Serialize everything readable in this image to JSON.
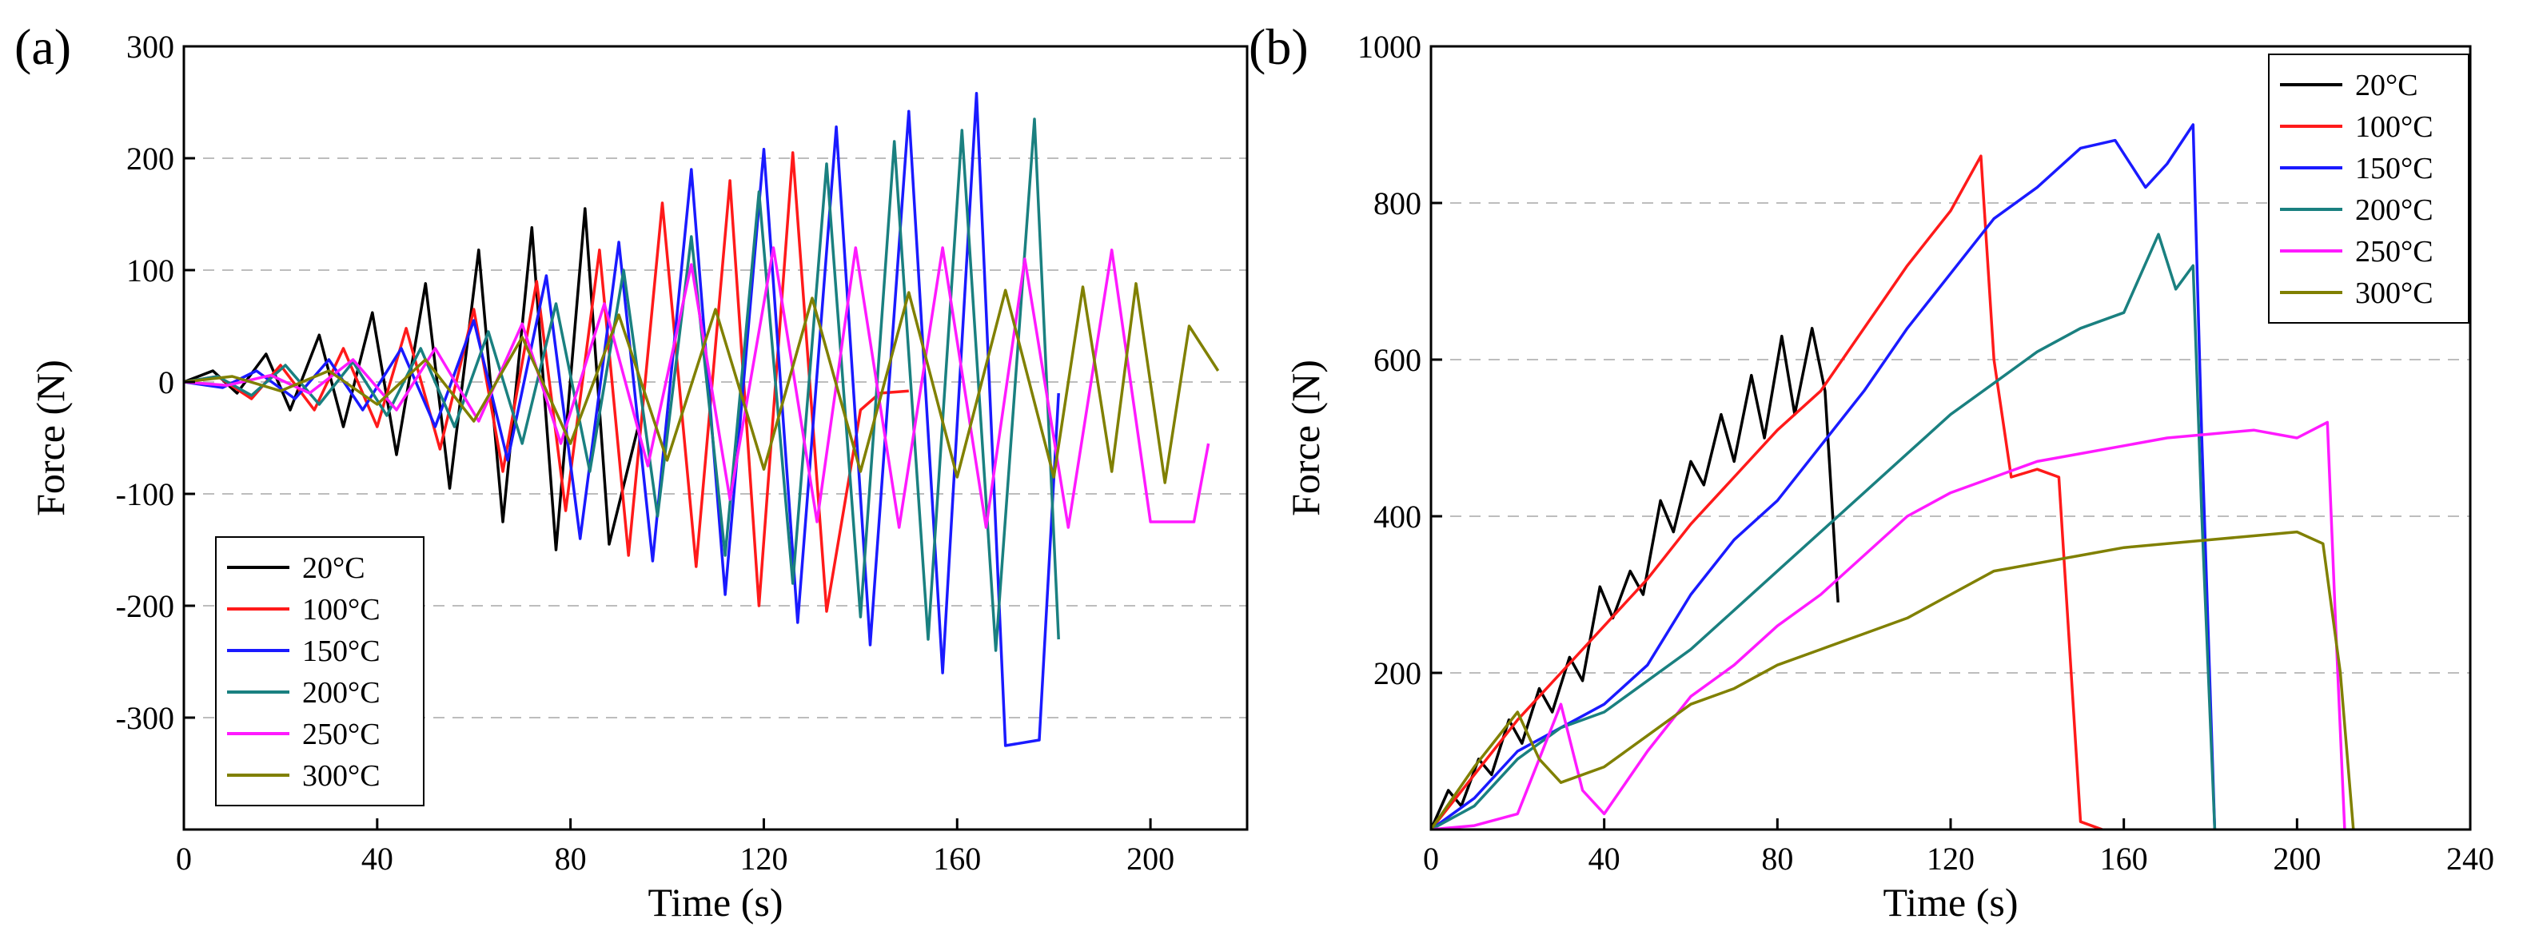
{
  "panels": [
    {
      "panel_label": "(a)",
      "chart_data": {
        "type": "line",
        "title": "",
        "xlabel": "Time (s)",
        "ylabel": "Force (N)",
        "xlim": [
          0,
          220
        ],
        "ylim": [
          -400,
          300
        ],
        "xticks": [
          0,
          40,
          80,
          120,
          160,
          200
        ],
        "yticks": [
          -300,
          -200,
          -100,
          0,
          100,
          200,
          300
        ],
        "grid": "dashed-horizontal",
        "legend_position": "bottom-left",
        "series": [
          {
            "name": "20°C",
            "color": "#000000",
            "x": [
              0,
              6,
              11,
              17,
              22,
              28,
              33,
              39,
              44,
              50,
              55,
              61,
              66,
              72,
              77,
              83,
              88,
              94
            ],
            "y": [
              0,
              10,
              -10,
              25,
              -25,
              42,
              -40,
              62,
              -65,
              88,
              -95,
              118,
              -125,
              138,
              -150,
              155,
              -145,
              -40
            ]
          },
          {
            "name": "100°C",
            "color": "#ff1a1a",
            "x": [
              0,
              7,
              14,
              20,
              27,
              33,
              40,
              46,
              53,
              60,
              66,
              73,
              79,
              86,
              92,
              99,
              106,
              113,
              119,
              126,
              133,
              140,
              144,
              150
            ],
            "y": [
              0,
              5,
              -15,
              15,
              -25,
              30,
              -40,
              48,
              -60,
              65,
              -80,
              90,
              -115,
              118,
              -155,
              160,
              -165,
              180,
              -200,
              205,
              -205,
              -25,
              -10,
              -8
            ]
          },
          {
            "name": "150°C",
            "color": "#1a1aff",
            "x": [
              0,
              8,
              15,
              23,
              30,
              37,
              45,
              52,
              60,
              67,
              75,
              82,
              90,
              97,
              105,
              112,
              120,
              127,
              135,
              142,
              150,
              157,
              164,
              170,
              177,
              181
            ],
            "y": [
              0,
              -5,
              10,
              -15,
              20,
              -25,
              30,
              -40,
              55,
              -70,
              95,
              -140,
              125,
              -160,
              190,
              -190,
              208,
              -215,
              228,
              -235,
              242,
              -260,
              258,
              -325,
              -320,
              -10
            ]
          },
          {
            "name": "200°C",
            "color": "#1a8080",
            "x": [
              0,
              7,
              14,
              21,
              28,
              35,
              42,
              49,
              56,
              63,
              70,
              77,
              84,
              91,
              98,
              105,
              112,
              119,
              126,
              133,
              140,
              147,
              154,
              161,
              168,
              176,
              181
            ],
            "y": [
              0,
              5,
              -12,
              15,
              -20,
              18,
              -30,
              30,
              -40,
              45,
              -55,
              70,
              -80,
              100,
              -120,
              130,
              -155,
              170,
              -180,
              195,
              -210,
              215,
              -230,
              225,
              -240,
              235,
              -230
            ]
          },
          {
            "name": "250°C",
            "color": "#ff1aff",
            "x": [
              0,
              9,
              18,
              26,
              35,
              44,
              52,
              61,
              70,
              78,
              87,
              96,
              105,
              113,
              122,
              131,
              139,
              148,
              157,
              166,
              174,
              183,
              192,
              200,
              209,
              212
            ],
            "y": [
              0,
              -3,
              6,
              -10,
              20,
              -25,
              30,
              -35,
              52,
              -55,
              70,
              -75,
              105,
              -105,
              120,
              -125,
              120,
              -130,
              120,
              -130,
              110,
              -130,
              118,
              -125,
              -125,
              -55
            ]
          },
          {
            "name": "300°C",
            "color": "#808000",
            "x": [
              0,
              10,
              20,
              30,
              40,
              50,
              60,
              70,
              80,
              90,
              100,
              110,
              120,
              130,
              140,
              150,
              160,
              170,
              180,
              186,
              192,
              197,
              203,
              208,
              214
            ],
            "y": [
              0,
              5,
              -8,
              10,
              -20,
              20,
              -35,
              40,
              -55,
              60,
              -70,
              65,
              -78,
              75,
              -80,
              80,
              -85,
              82,
              -85,
              85,
              -80,
              88,
              -90,
              50,
              10
            ]
          }
        ]
      }
    },
    {
      "panel_label": "(b)",
      "chart_data": {
        "type": "line",
        "title": "",
        "xlabel": "Time (s)",
        "ylabel": "Force (N)",
        "xlim": [
          0,
          240
        ],
        "ylim": [
          0,
          1000
        ],
        "xticks": [
          0,
          40,
          80,
          120,
          160,
          200,
          240
        ],
        "yticks": [
          200,
          400,
          600,
          800,
          1000
        ],
        "grid": "dashed-horizontal",
        "legend_position": "top-right",
        "series": [
          {
            "name": "20°C",
            "color": "#000000",
            "x": [
              0,
              4,
              7,
              11,
              14,
              18,
              21,
              25,
              28,
              32,
              35,
              39,
              42,
              46,
              49,
              53,
              56,
              60,
              63,
              67,
              70,
              74,
              77,
              81,
              84,
              88,
              91,
              94
            ],
            "y": [
              0,
              50,
              30,
              90,
              70,
              140,
              110,
              180,
              150,
              220,
              190,
              310,
              270,
              330,
              300,
              420,
              380,
              470,
              440,
              530,
              470,
              580,
              500,
              630,
              530,
              640,
              560,
              290
            ]
          },
          {
            "name": "100°C",
            "color": "#ff1a1a",
            "x": [
              0,
              10,
              20,
              30,
              40,
              50,
              60,
              70,
              80,
              90,
              100,
              110,
              120,
              127,
              130,
              134,
              140,
              145,
              150,
              155
            ],
            "y": [
              0,
              70,
              140,
              200,
              260,
              320,
              390,
              450,
              510,
              560,
              640,
              720,
              790,
              860,
              600,
              450,
              460,
              450,
              10,
              0
            ]
          },
          {
            "name": "150°C",
            "color": "#1a1aff",
            "x": [
              0,
              10,
              20,
              30,
              40,
              50,
              60,
              70,
              80,
              90,
              100,
              110,
              120,
              130,
              140,
              150,
              158,
              165,
              170,
              176,
              178,
              181
            ],
            "y": [
              0,
              40,
              100,
              130,
              160,
              210,
              300,
              370,
              420,
              490,
              560,
              640,
              710,
              780,
              820,
              870,
              880,
              820,
              850,
              900,
              500,
              0
            ]
          },
          {
            "name": "200°C",
            "color": "#1a8080",
            "x": [
              0,
              10,
              20,
              30,
              40,
              50,
              60,
              70,
              80,
              90,
              100,
              110,
              120,
              130,
              140,
              150,
              160,
              168,
              172,
              176,
              178,
              181
            ],
            "y": [
              0,
              30,
              90,
              130,
              150,
              190,
              230,
              280,
              330,
              380,
              430,
              480,
              530,
              570,
              610,
              640,
              660,
              760,
              690,
              720,
              400,
              0
            ]
          },
          {
            "name": "250°C",
            "color": "#ff1aff",
            "x": [
              0,
              10,
              20,
              30,
              35,
              40,
              50,
              60,
              70,
              80,
              90,
              100,
              110,
              120,
              130,
              140,
              150,
              160,
              170,
              180,
              190,
              200,
              207,
              209,
              211
            ],
            "y": [
              0,
              5,
              20,
              160,
              50,
              20,
              100,
              170,
              210,
              260,
              300,
              350,
              400,
              430,
              450,
              470,
              480,
              490,
              500,
              505,
              510,
              500,
              520,
              250,
              0
            ]
          },
          {
            "name": "300°C",
            "color": "#808000",
            "x": [
              0,
              10,
              20,
              25,
              30,
              40,
              50,
              60,
              70,
              80,
              90,
              100,
              110,
              120,
              130,
              140,
              150,
              160,
              170,
              180,
              190,
              200,
              206,
              210,
              213
            ],
            "y": [
              0,
              80,
              150,
              90,
              60,
              80,
              120,
              160,
              180,
              210,
              230,
              250,
              270,
              300,
              330,
              340,
              350,
              360,
              365,
              370,
              375,
              380,
              365,
              200,
              0
            ]
          }
        ]
      }
    }
  ]
}
